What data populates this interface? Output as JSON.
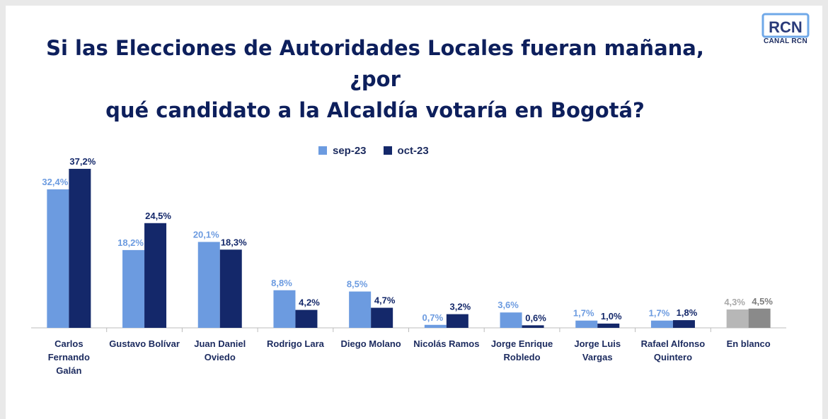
{
  "title_lines": [
    "Si las Elecciones de Autoridades Locales fueran mañana, ¿por",
    "qué candidato a la Alcaldía votaría en Bogotá?"
  ],
  "logo": {
    "mark": "RCN",
    "text": "CANAL RCN"
  },
  "colors": {
    "sep": "#6c9be0",
    "oct": "#14286a",
    "sep_blank": "#b7b7b7",
    "oct_blank": "#8a8a8a",
    "title": "#0d1f5c"
  },
  "chart_data": {
    "type": "bar",
    "title": "Si las Elecciones de Autoridades Locales fueran mañana, ¿por qué candidato a la Alcaldía votaría en Bogotá?",
    "categories": [
      "Carlos Fernando Galán",
      "Gustavo Bolívar",
      "Juan Daniel Oviedo",
      "Rodrigo Lara",
      "Diego Molano",
      "Nicolás Ramos",
      "Jorge Enrique Robledo",
      "Jorge Luis Vargas",
      "Rafael Alfonso Quintero",
      "En blanco"
    ],
    "category_lines": [
      [
        "Carlos",
        "Fernando",
        "Galán"
      ],
      [
        "Gustavo Bolívar"
      ],
      [
        "Juan Daniel",
        "Oviedo"
      ],
      [
        "Rodrigo Lara"
      ],
      [
        "Diego Molano"
      ],
      [
        "Nicolás Ramos"
      ],
      [
        "Jorge Enrique",
        "Robledo"
      ],
      [
        "Jorge Luis",
        "Vargas"
      ],
      [
        "Rafael Alfonso",
        "Quintero"
      ],
      [
        "En blanco"
      ]
    ],
    "series": [
      {
        "name": "sep-23",
        "values": [
          32.4,
          18.2,
          20.1,
          8.8,
          8.5,
          0.7,
          3.6,
          1.7,
          1.7,
          4.3
        ],
        "labels": [
          "32,4%",
          "18,2%",
          "20,1%",
          "8,8%",
          "8,5%",
          "0,7%",
          "3,6%",
          "1,7%",
          "1,7%",
          "4,3%"
        ]
      },
      {
        "name": "oct-23",
        "values": [
          37.2,
          24.5,
          18.3,
          4.2,
          4.7,
          3.2,
          0.6,
          1.0,
          1.8,
          4.5
        ],
        "labels": [
          "37,2%",
          "24,5%",
          "18,3%",
          "4,2%",
          "4,7%",
          "3,2%",
          "0,6%",
          "1,0%",
          "1,8%",
          "4,5%"
        ]
      }
    ],
    "xlabel": "",
    "ylabel": "",
    "ylim": [
      0,
      40
    ],
    "grid": false,
    "legend_position": "top-center"
  }
}
